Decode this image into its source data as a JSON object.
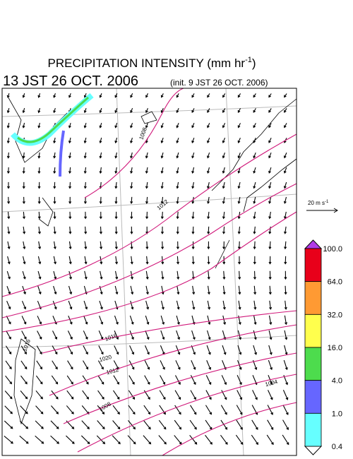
{
  "header": {
    "title": "PRECIPITATION INTENSITY (mm hr",
    "title_sup": "-1",
    "title_end": ")",
    "valid_time": "13 JST 26 OCT. 2006",
    "init_time": "(init. 9 JST 26 OCT. 2006)"
  },
  "vector_scale": {
    "label": "20 m s",
    "sup": "-1"
  },
  "colorbar": {
    "labels": [
      "100.0",
      "64.0",
      "32.0",
      "16.0",
      "4.0",
      "1.0",
      "0.4"
    ],
    "colors": [
      "#e8001a",
      "#ff9a33",
      "#ffff4d",
      "#4ddc4d",
      "#6666ff",
      "#66ffff"
    ],
    "over_color": "#b03ce6",
    "under_color": "#ffffff"
  },
  "isobar_labels": [
    "1008",
    "1012",
    "1016",
    "1016",
    "1020",
    "1012",
    "1008",
    "1004"
  ]
}
